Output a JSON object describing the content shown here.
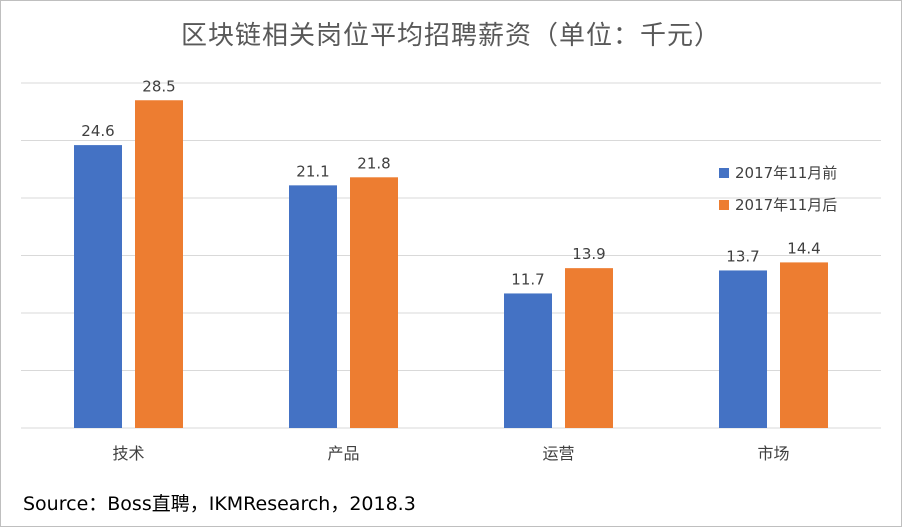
{
  "title": "区块链相关岗位平均招聘薪资（单位：千元）",
  "source": "Source：Boss直聘，IKMResearch，2018.3",
  "chart_data": {
    "type": "bar",
    "title": "区块链相关岗位平均招聘薪资（单位：千元）",
    "categories": [
      "技术",
      "产品",
      "运营",
      "市场"
    ],
    "series": [
      {
        "name": "2017年11月前",
        "values": [
          24.6,
          21.1,
          11.7,
          13.7
        ],
        "color": "#4472c4"
      },
      {
        "name": "2017年11月后",
        "values": [
          28.5,
          21.8,
          13.9,
          14.4
        ],
        "color": "#ed7d31"
      }
    ],
    "ylim": [
      0,
      30
    ],
    "gridlines": [
      0,
      5,
      10,
      15,
      20,
      25,
      30
    ],
    "grid": true,
    "y_tick_labels_shown": false,
    "legend_position": "right",
    "data_labels": true
  }
}
